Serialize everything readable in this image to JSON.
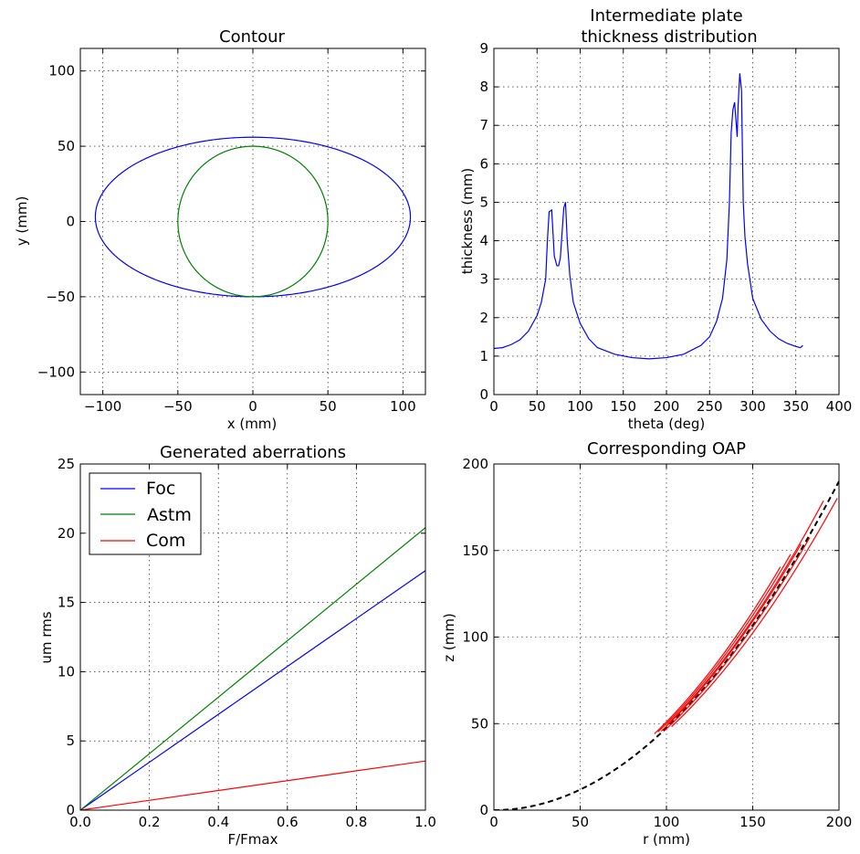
{
  "chart_data": [
    {
      "id": "contour",
      "type": "line",
      "title": "Contour",
      "xlabel": "x (mm)",
      "ylabel": "y (mm)",
      "xlim": [
        -115,
        115
      ],
      "ylim": [
        -115,
        115
      ],
      "xticks": [
        -100,
        -50,
        0,
        50,
        100
      ],
      "yticks": [
        -100,
        -50,
        0,
        50,
        100
      ],
      "xtick_labels": [
        "−100",
        "−50",
        "0",
        "50",
        "100"
      ],
      "ytick_labels": [
        "−100",
        "−50",
        "0",
        "50",
        "100"
      ],
      "grid": true,
      "series": [
        {
          "name": "outer ellipse",
          "color": "#0000ff",
          "shape": "ellipse",
          "cx": 0,
          "cy": 3,
          "rx": 105,
          "ry": 53
        },
        {
          "name": "inner circle",
          "color": "#008000",
          "shape": "circle",
          "cx": 0,
          "cy": 0,
          "r": 50
        }
      ]
    },
    {
      "id": "thickness",
      "type": "line",
      "title": "Intermediate plate\nthickness distribution",
      "title_lines": [
        "Intermediate plate",
        "thickness distribution"
      ],
      "xlabel": "theta (deg)",
      "ylabel": "thickness (mm)",
      "xlim": [
        0,
        400
      ],
      "ylim": [
        0,
        9
      ],
      "xticks": [
        0,
        50,
        100,
        150,
        200,
        250,
        300,
        350,
        400
      ],
      "yticks": [
        0,
        1,
        2,
        3,
        4,
        5,
        6,
        7,
        8,
        9
      ],
      "xtick_labels": [
        "0",
        "50",
        "100",
        "150",
        "200",
        "250",
        "300",
        "350",
        "400"
      ],
      "ytick_labels": [
        "0",
        "1",
        "2",
        "3",
        "4",
        "5",
        "6",
        "7",
        "8",
        "9"
      ],
      "grid": true,
      "series": [
        {
          "name": "thickness",
          "color": "#0000ff",
          "x": [
            0,
            10,
            20,
            30,
            40,
            50,
            55,
            60,
            62,
            64,
            67,
            70,
            73,
            75,
            77,
            79,
            81,
            83,
            85,
            88,
            92,
            100,
            110,
            120,
            140,
            160,
            180,
            200,
            220,
            240,
            250,
            258,
            265,
            270,
            273,
            275,
            277,
            279,
            281,
            282,
            283,
            285,
            287,
            289,
            291,
            294,
            300,
            310,
            320,
            330,
            340,
            350,
            355,
            357,
            358
          ],
          "y": [
            1.2,
            1.22,
            1.3,
            1.42,
            1.65,
            2.05,
            2.4,
            3.0,
            4.0,
            4.75,
            4.8,
            3.6,
            3.35,
            3.35,
            3.55,
            4.2,
            4.85,
            5.0,
            4.0,
            3.1,
            2.4,
            1.85,
            1.45,
            1.22,
            1.05,
            0.96,
            0.93,
            0.96,
            1.05,
            1.28,
            1.5,
            1.9,
            2.5,
            3.5,
            5.0,
            6.8,
            7.4,
            7.6,
            7.0,
            6.7,
            7.5,
            8.35,
            7.9,
            5.0,
            4.1,
            3.4,
            2.5,
            1.95,
            1.65,
            1.45,
            1.33,
            1.25,
            1.22,
            1.25,
            1.28
          ]
        }
      ]
    },
    {
      "id": "aberrations",
      "type": "line",
      "title": "Generated aberrations",
      "xlabel": "F/Fmax",
      "ylabel": "um rms",
      "xlim": [
        0,
        1
      ],
      "ylim": [
        0,
        25
      ],
      "xticks": [
        0,
        0.2,
        0.4,
        0.6,
        0.8,
        1.0
      ],
      "yticks": [
        0,
        5,
        10,
        15,
        20,
        25
      ],
      "xtick_labels": [
        "0.0",
        "0.2",
        "0.4",
        "0.6",
        "0.8",
        "1.0"
      ],
      "ytick_labels": [
        "0",
        "5",
        "10",
        "15",
        "20",
        "25"
      ],
      "grid": true,
      "legend": "top-left",
      "series": [
        {
          "name": "Foc",
          "color": "#0000ff",
          "x": [
            0,
            1
          ],
          "y": [
            0,
            17.3
          ]
        },
        {
          "name": "Astm",
          "color": "#008000",
          "x": [
            0,
            1
          ],
          "y": [
            0,
            20.4
          ]
        },
        {
          "name": "Com",
          "color": "#ff0000",
          "x": [
            0,
            1
          ],
          "y": [
            0,
            3.55
          ]
        }
      ]
    },
    {
      "id": "oap",
      "type": "line",
      "title": "Corresponding OAP",
      "xlabel": "r (mm)",
      "ylabel": "z (mm)",
      "xlim": [
        0,
        200
      ],
      "ylim": [
        0,
        200
      ],
      "xticks": [
        0,
        50,
        100,
        150,
        200
      ],
      "yticks": [
        0,
        50,
        100,
        150,
        200
      ],
      "xtick_labels": [
        "0",
        "50",
        "100",
        "150",
        "200"
      ],
      "ytick_labels": [
        "0",
        "50",
        "100",
        "150",
        "200"
      ],
      "grid": true,
      "parent_parabola": {
        "color": "#000000",
        "dashed": true,
        "r_max": 200,
        "k": 0.00475
      },
      "segments": [
        {
          "color": "#ff0000",
          "r_start": 93,
          "r_end": 166,
          "k": 0.0051
        },
        {
          "color": "#ff0000",
          "r_start": 95,
          "r_end": 172,
          "k": 0.005
        },
        {
          "color": "#ff0000",
          "r_start": 97,
          "r_end": 178,
          "k": 0.00485
        },
        {
          "color": "#ff0000",
          "r_start": 99,
          "r_end": 183,
          "k": 0.0047
        },
        {
          "color": "#ff0000",
          "r_start": 101,
          "r_end": 191,
          "k": 0.0049
        },
        {
          "color": "#ff0000",
          "r_start": 103,
          "r_end": 199,
          "k": 0.00455
        }
      ]
    }
  ]
}
